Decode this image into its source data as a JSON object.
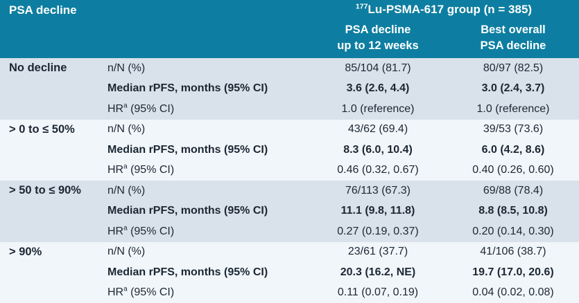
{
  "table": {
    "header": {
      "col1": "PSA decline",
      "group_sup": "177",
      "group_title": "Lu-PSMA-617 group (n = 385)",
      "col3": {
        "line1": "PSA decline",
        "line2": "up to 12 weeks"
      },
      "col4": {
        "line1": "Best overall",
        "line2": "PSA decline"
      }
    },
    "hr_label": {
      "prefix": "HR",
      "sup": "a",
      "suffix": " (95% CI)"
    },
    "groups": [
      {
        "label": "No decline",
        "nn": {
          "metric": "n/N (%)",
          "c1": "85/104 (81.7)",
          "c2": "80/97 (82.5)"
        },
        "rpfs": {
          "metric": "Median rPFS, months (95% CI)",
          "c1": "3.6 (2.6, 4.4)",
          "c2": "3.0 (2.4, 3.7)"
        },
        "hr": {
          "c1": "1.0 (reference)",
          "c2": "1.0 (reference)"
        }
      },
      {
        "label": "> 0 to ≤ 50%",
        "nn": {
          "metric": "n/N (%)",
          "c1": "43/62 (69.4)",
          "c2": "39/53 (73.6)"
        },
        "rpfs": {
          "metric": "Median rPFS, months (95% CI)",
          "c1": "8.3 (6.0, 10.4)",
          "c2": "6.0 (4.2, 8.6)"
        },
        "hr": {
          "c1": "0.46 (0.32, 0.67)",
          "c2": "0.40 (0.26, 0.60)"
        }
      },
      {
        "label": "> 50 to ≤ 90%",
        "nn": {
          "metric": "n/N (%)",
          "c1": "76/113 (67.3)",
          "c2": "69/88 (78.4)"
        },
        "rpfs": {
          "metric": "Median rPFS, months (95% CI)",
          "c1": "11.1 (9.8, 11.8)",
          "c2": "8.8 (8.5, 10.8)"
        },
        "hr": {
          "c1": "0.27 (0.19, 0.37)",
          "c2": "0.20 (0.14, 0.30)"
        }
      },
      {
        "label": "> 90%",
        "nn": {
          "metric": "n/N (%)",
          "c1": "23/61 (37.7)",
          "c2": "41/106 (38.7)"
        },
        "rpfs": {
          "metric": "Median rPFS, months (95% CI)",
          "c1": "20.3 (16.2, NE)",
          "c2": "19.7 (17.0, 20.6)"
        },
        "hr": {
          "c1": "0.11 (0.07, 0.19)",
          "c2": "0.04 (0.02, 0.08)"
        }
      }
    ],
    "colors": {
      "header_bg": "#0d7ea1",
      "band_blue_gray": "#d9e1ea",
      "band_light": "#f1f6fa",
      "text": "#1b2733",
      "header_text": "#ffffff"
    }
  }
}
